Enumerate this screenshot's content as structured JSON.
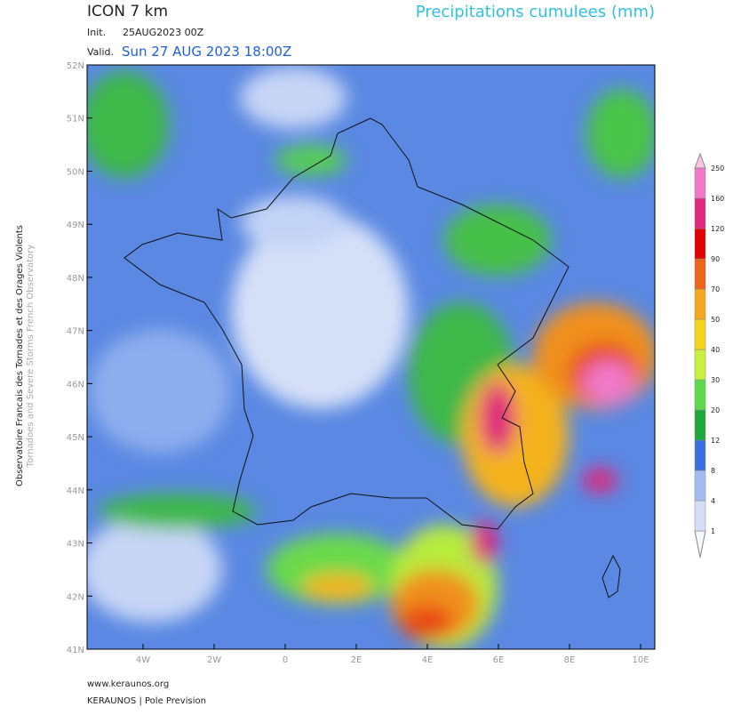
{
  "header": {
    "model": "ICON 7 km",
    "init_label": "Init.",
    "init": "25AUG2023 00Z",
    "valid_label": "Valid.",
    "valid": "Sun 27 AUG 2023 18:00Z",
    "product": "Precipitations cumulees (mm)"
  },
  "side": {
    "org_fr": "Observatoire Francais des Tornades et des Orages Violents",
    "org_en": "Tornadoes and Severe Storms French Observatory"
  },
  "map": {
    "lat_labels": [
      "41N",
      "42N",
      "43N",
      "44N",
      "45N",
      "46N",
      "47N",
      "48N",
      "49N",
      "50N",
      "51N",
      "52N"
    ],
    "lon_labels": [
      "4W",
      "2W",
      "0",
      "2E",
      "4E",
      "6E",
      "8E",
      "10E"
    ]
  },
  "colorbar": {
    "levels": [
      1,
      4,
      8,
      12,
      20,
      30,
      40,
      50,
      70,
      90,
      120,
      160,
      250
    ],
    "colors": [
      "#f4f6fc",
      "#d4def6",
      "#a4bcf0",
      "#3a6ede",
      "#1fa83a",
      "#5fd84c",
      "#c8f03c",
      "#f4d41c",
      "#f4a81c",
      "#f0641a",
      "#e00000",
      "#e0287c",
      "#f078c8",
      "#f8c4e4"
    ]
  },
  "footer": {
    "site": "www.keraunos.org",
    "org": "KERAUNOS | Pole Prevision"
  }
}
